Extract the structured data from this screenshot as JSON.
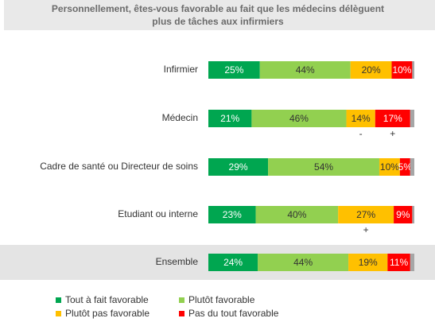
{
  "chart_data": {
    "type": "stacked-bar-horizontal",
    "title": "Personnellement, êtes-vous favorable au fait que les médecins délèguent plus de tâches aux infirmiers",
    "categories": [
      "Infirmier",
      "Médecin",
      "Cadre de santé ou Directeur de soins",
      "Etudiant ou interne",
      "Ensemble"
    ],
    "xlim": [
      0,
      100
    ],
    "series": [
      {
        "name": "Tout à fait favorable",
        "color": "#00a650",
        "values": [
          25,
          21,
          29,
          23,
          24
        ],
        "value_labels": [
          "25%",
          "21%",
          "29%",
          "23%",
          "24%"
        ]
      },
      {
        "name": "Plutôt favorable",
        "color": "#92d050",
        "values": [
          44,
          46,
          54,
          40,
          44
        ],
        "value_labels": [
          "44%",
          "46%",
          "54%",
          "40%",
          "44%"
        ]
      },
      {
        "name": "Plutôt pas favorable",
        "color": "#ffc000",
        "values": [
          20,
          14,
          10,
          27,
          19
        ],
        "value_labels": [
          "20%",
          "14%",
          "10%",
          "27%",
          "19%"
        ]
      },
      {
        "name": "Pas du tout favorable",
        "color": "#ff0000",
        "values": [
          10,
          17,
          5,
          9,
          11
        ],
        "value_labels": [
          "10%",
          "17%",
          "5%",
          "9%",
          "11%"
        ]
      },
      {
        "color": "#a6a6a6",
        "values": [
          1,
          2,
          2,
          1,
          2
        ]
      }
    ],
    "annotations": [
      {
        "category": 1,
        "series": 2,
        "text": "-"
      },
      {
        "category": 1,
        "series": 3,
        "text": "+"
      },
      {
        "category": 3,
        "series": 2,
        "text": "+"
      }
    ]
  }
}
